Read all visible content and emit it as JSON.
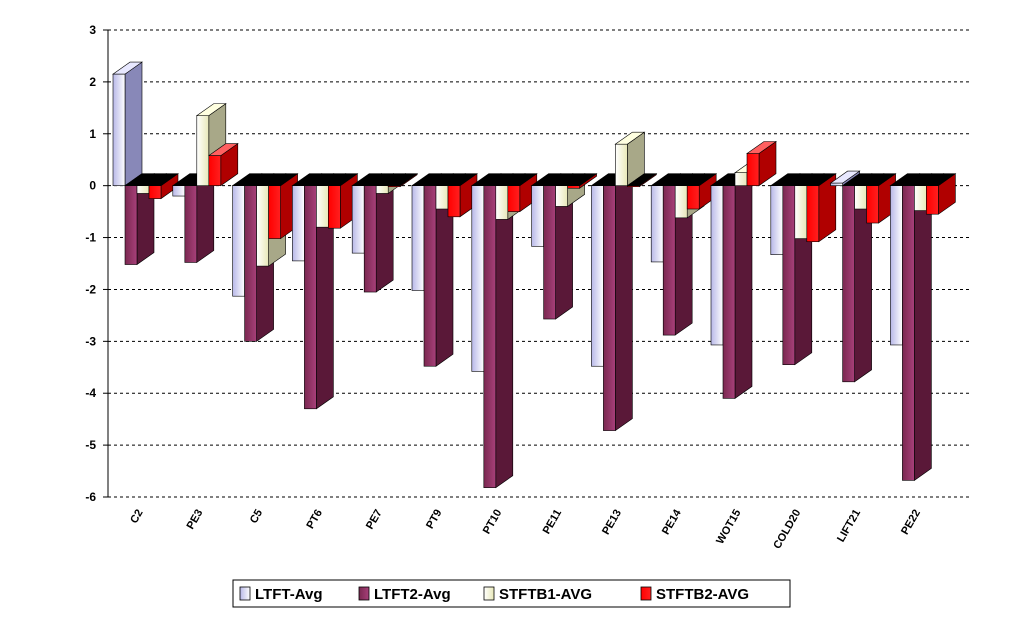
{
  "chart_data": {
    "type": "bar",
    "style": "3d-clustered-column",
    "title": "",
    "xlabel": "",
    "ylabel": "",
    "ylim": [
      -6,
      3
    ],
    "yticks": [
      3,
      2,
      1,
      0,
      -1,
      -2,
      -3,
      -4,
      -5,
      -6
    ],
    "grid": true,
    "legend": "bottom",
    "categories": [
      "C2",
      "PE3",
      "C5",
      "PT6",
      "PE7",
      "PT9",
      "PT10",
      "PE11",
      "PE13",
      "PE14",
      "WOT15",
      "COLD20",
      "LIFT21",
      "PE22"
    ],
    "series": [
      {
        "name": "LTFT-Avg",
        "color": "#c8c8f0",
        "values": [
          2.15,
          -0.2,
          -2.13,
          -1.45,
          -1.3,
          -2.02,
          -3.58,
          -1.17,
          -3.48,
          -1.47,
          -3.07,
          -1.33,
          0.05,
          -3.07
        ]
      },
      {
        "name": "LTFT2-Avg",
        "color": "#993366",
        "values": [
          -1.52,
          -1.48,
          -3.0,
          -4.3,
          -2.05,
          -3.48,
          -5.82,
          -2.57,
          -4.72,
          -2.88,
          -4.1,
          -3.45,
          -3.78,
          -5.68
        ]
      },
      {
        "name": "STFTB1-AVG",
        "color": "#f0f0c8",
        "values": [
          -0.15,
          1.35,
          -1.55,
          -0.8,
          -0.15,
          -0.45,
          -0.65,
          -0.4,
          0.8,
          -0.62,
          0.25,
          -1.02,
          -0.45,
          -0.48
        ]
      },
      {
        "name": "STFTB2-AVG",
        "color": "#ff0000",
        "values": [
          -0.25,
          0.58,
          -1.02,
          -0.82,
          -0.02,
          -0.6,
          -0.5,
          -0.05,
          -0.02,
          -0.45,
          0.62,
          -1.08,
          -0.72,
          -0.55
        ]
      }
    ]
  }
}
